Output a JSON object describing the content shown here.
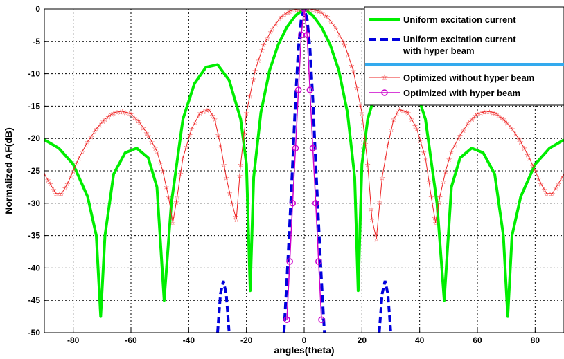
{
  "chart_data": {
    "type": "line",
    "title": "",
    "xlabel": "angles(theta)",
    "ylabel": "Normalized AF(dB)",
    "xlim": [
      -90,
      90
    ],
    "ylim": [
      -50,
      0
    ],
    "x_ticks": [
      "-80",
      "-60",
      "-40",
      "-20",
      "0",
      "20",
      "40",
      "60",
      "80"
    ],
    "y_ticks": [
      "0",
      "-5",
      "-10",
      "-15",
      "-20",
      "-25",
      "-30",
      "-35",
      "-40",
      "-45",
      "-50"
    ],
    "grid": true,
    "legend_position": "top-right",
    "series": [
      {
        "name": "Uniform excitation current",
        "color": "#00ee00",
        "style": "solid",
        "x": [
          -90,
          -85,
          -80,
          -75,
          -72,
          -70.5,
          -69,
          -66,
          -62,
          -58,
          -54,
          -51,
          -48.5,
          -46,
          -42,
          -38,
          -34,
          -30,
          -26,
          -22,
          -20,
          -18.7,
          -17.5,
          -15,
          -12,
          -9,
          -6,
          -3,
          0,
          3,
          6,
          9,
          12,
          15,
          17.5,
          18.7,
          20,
          22,
          26,
          30,
          34,
          38,
          42,
          46,
          48.5,
          51,
          54,
          58,
          62,
          66,
          69,
          70.5,
          72,
          75,
          80,
          85,
          90
        ],
        "y": [
          -20.2,
          -21.5,
          -24,
          -29,
          -35,
          -47.5,
          -35,
          -25.5,
          -22.2,
          -21.5,
          -23,
          -27.5,
          -45,
          -30,
          -17,
          -11.5,
          -9,
          -8.6,
          -11,
          -17,
          -24,
          -43.5,
          -26,
          -16,
          -9.5,
          -5.5,
          -2.8,
          -1,
          0,
          -1,
          -2.8,
          -5.5,
          -9.5,
          -16,
          -26,
          -43.5,
          -24,
          -17,
          -11,
          -8.6,
          -9,
          -11.5,
          -17,
          -30,
          -45,
          -27.5,
          -23,
          -21.5,
          -22.2,
          -25.5,
          -35,
          -47.5,
          -35,
          -29,
          -24,
          -21.5,
          -20.2
        ]
      },
      {
        "name": "Uniform excitation current with hyper beam",
        "label_lines": [
          "Uniform excitation current",
          "with hyper beam"
        ],
        "color": "#0000dd",
        "style": "dashed",
        "x": [
          -7,
          -6,
          -5,
          -4,
          -3,
          -2,
          -1,
          0,
          1,
          2,
          3,
          4,
          5,
          6,
          7
        ],
        "y": [
          -50,
          -42,
          -33,
          -24,
          -14,
          -6,
          -1.5,
          0,
          -1.5,
          -6,
          -14,
          -24,
          -33,
          -42,
          -50
        ],
        "sidelobes": [
          {
            "x": [
              -30,
              -29,
              -28,
              -27,
              -26
            ],
            "y": [
              -50,
              -44,
              -42,
              -44,
              -50
            ]
          },
          {
            "x": [
              26,
              27,
              28,
              29,
              30
            ],
            "y": [
              -50,
              -44,
              -42,
              -44,
              -50
            ]
          }
        ]
      },
      {
        "name": "Optimized without hyper beam",
        "color": "#ee2222",
        "style": "solid-star",
        "x": [
          -90,
          -88,
          -86,
          -84,
          -82,
          -80,
          -78,
          -75,
          -72,
          -69,
          -66,
          -63,
          -60,
          -57,
          -54,
          -51,
          -49,
          -47,
          -45.5,
          -44,
          -42,
          -39,
          -36,
          -33,
          -31,
          -29,
          -27,
          -25,
          -23.5,
          -22,
          -20,
          -17,
          -14,
          -11,
          -8,
          -5,
          -2,
          0,
          2,
          5,
          8,
          11,
          14,
          17,
          20,
          22,
          23.5,
          25,
          27,
          29,
          31,
          33,
          36,
          39,
          42,
          44,
          45.5,
          47,
          49,
          51,
          54,
          57,
          60,
          63,
          66,
          69,
          72,
          75,
          78,
          80,
          82,
          84,
          86,
          88,
          90
        ],
        "y": [
          -25.5,
          -27,
          -28.5,
          -28.5,
          -27,
          -25,
          -23,
          -20.5,
          -18.5,
          -17,
          -16,
          -15.8,
          -16.2,
          -17.5,
          -19.5,
          -22,
          -25,
          -29,
          -33,
          -29,
          -23,
          -18.5,
          -16,
          -15.5,
          -17,
          -21,
          -26,
          -30,
          -32.5,
          -24,
          -16,
          -9.5,
          -5.5,
          -3,
          -1.2,
          -0.3,
          0,
          0.2,
          0,
          -0.3,
          -1.2,
          -3,
          -5.5,
          -9.5,
          -16,
          -24,
          -32.5,
          -35.5,
          -26,
          -21,
          -17,
          -15.5,
          -16,
          -18.5,
          -23,
          -29,
          -33,
          -29,
          -25,
          -22,
          -19.5,
          -17.5,
          -16.2,
          -15.8,
          -16,
          -17,
          -18.5,
          -20.5,
          -23,
          -25,
          -27,
          -28.5,
          -28.5,
          -27,
          -25.5
        ]
      },
      {
        "name": "Optimized with hyper beam",
        "color": "#cc00cc",
        "style": "solid-circle",
        "x": [
          -6,
          -5,
          -4,
          -3,
          -2,
          -1,
          0,
          1,
          2,
          3,
          4,
          5,
          6
        ],
        "y": [
          -48,
          -39,
          -30,
          -21.5,
          -12.5,
          -4,
          0,
          -4,
          -12.5,
          -21.5,
          -30,
          -39,
          -48
        ]
      }
    ]
  }
}
